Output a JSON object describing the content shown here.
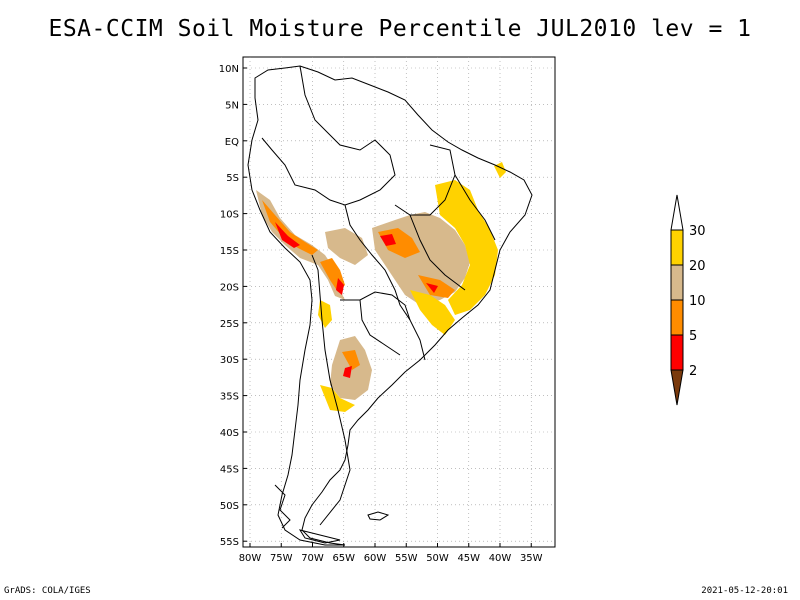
{
  "title": "ESA-CCIM Soil Moisture Percentile JUL2010 lev = 1",
  "footer": {
    "left": "GrADS: COLA/IGES",
    "right": "2021-05-12-20:01"
  },
  "colors": {
    "c2": "#7a3a0c",
    "c5": "#ff0000",
    "c10": "#ff8c00",
    "c20": "#d7b98c",
    "c30": "#ffd200",
    "c_top": "#ffffff",
    "coast": "#000000",
    "grid": "#999999"
  },
  "axes": {
    "lon_labels": [
      "80W",
      "75W",
      "70W",
      "65W",
      "60W",
      "55W",
      "50W",
      "45W",
      "40W",
      "35W"
    ],
    "lat_labels": [
      "10N",
      "5N",
      "EQ",
      "5S",
      "10S",
      "15S",
      "20S",
      "25S",
      "30S",
      "35S",
      "40S",
      "45S",
      "50S",
      "55S"
    ]
  },
  "legend": {
    "labels": [
      "30",
      "20",
      "10",
      "5",
      "2"
    ]
  }
}
